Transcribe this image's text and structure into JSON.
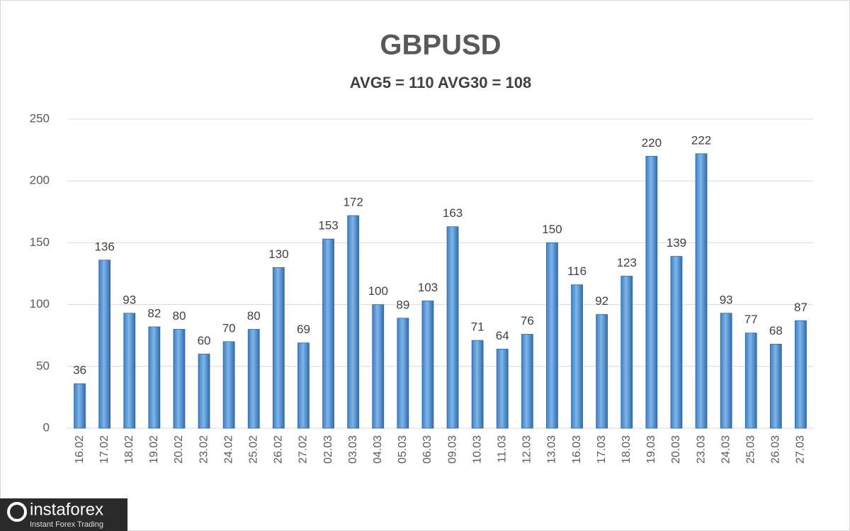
{
  "chart_data": {
    "type": "bar",
    "title": "GBPUSD",
    "subtitle": "AVG5 = 110 AVG30 = 108",
    "categories": [
      "16.02",
      "17.02",
      "18.02",
      "19.02",
      "20.02",
      "23.02",
      "24.02",
      "25.02",
      "26.02",
      "27.02",
      "02.03",
      "03.03",
      "04.03",
      "05.03",
      "06.03",
      "09.03",
      "10.03",
      "11.03",
      "12.03",
      "13.03",
      "16.03",
      "17.03",
      "18.03",
      "19.03",
      "20.03",
      "23.03",
      "24.03",
      "25.03",
      "26.03",
      "27.03"
    ],
    "values": [
      36,
      136,
      93,
      82,
      80,
      60,
      70,
      80,
      130,
      69,
      153,
      172,
      100,
      89,
      103,
      163,
      71,
      64,
      76,
      150,
      116,
      92,
      123,
      220,
      139,
      222,
      93,
      77,
      68,
      87
    ],
    "color": "#5b9bd5",
    "ylim": [
      0,
      250
    ],
    "yticks": [
      0,
      50,
      100,
      150,
      200,
      250
    ],
    "grid": true
  },
  "logo": {
    "name": "instaforex",
    "tagline": "Instant Forex Trading"
  }
}
